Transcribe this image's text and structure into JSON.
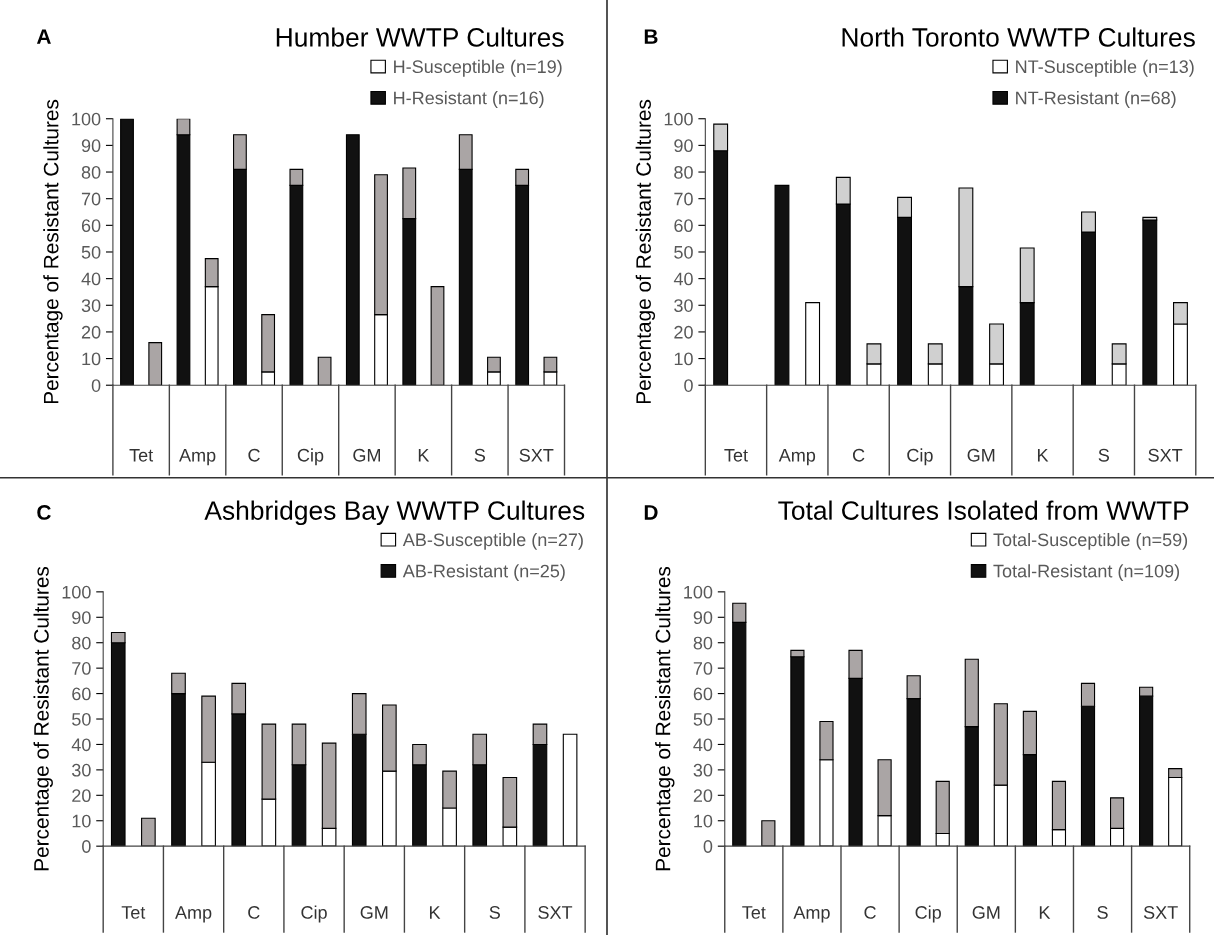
{
  "chart_data": [
    {
      "type": "bar",
      "title": "Humber WWTP Cultures",
      "ylabel": "Percentage of Resistant Cultures",
      "annotations": [
        "A"
      ],
      "stacked": true,
      "legend": "top right",
      "ylim": [
        0,
        100
      ],
      "yticks": [
        0,
        10,
        20,
        30,
        40,
        50,
        60,
        70,
        80,
        90,
        100
      ],
      "categories": [
        "Tet",
        null,
        "Amp",
        null,
        "C",
        null,
        "Cip",
        null,
        "GM",
        null,
        "K",
        null,
        "S",
        null,
        "SXT",
        null
      ],
      "series": [
        {
          "name": "H-Susceptible (n=19)",
          "color": "#ffffff",
          "values": [
            null,
            null,
            null,
            37,
            null,
            5,
            null,
            null,
            null,
            26.5,
            null,
            null,
            null,
            5,
            null,
            5
          ]
        },
        {
          "name": "H-Resistant (n=16)",
          "color": "#111111",
          "values": [
            100,
            null,
            94,
            null,
            81,
            null,
            75,
            null,
            94,
            null,
            62.5,
            null,
            81,
            null,
            75,
            null
          ]
        },
        {
          "color": "#aaa5a5",
          "values": [
            null,
            16,
            6,
            10.5,
            13,
            21.5,
            6,
            10.5,
            null,
            52.5,
            19,
            37,
            13,
            5.5,
            6,
            5.5
          ]
        }
      ]
    },
    {
      "type": "bar",
      "title": "North Toronto WWTP Cultures",
      "ylabel": "Percentage of Resistant Cultures",
      "annotations": [
        "B"
      ],
      "stacked": true,
      "legend": "top right",
      "ylim": [
        0,
        100
      ],
      "yticks": [
        0,
        10,
        20,
        30,
        40,
        50,
        60,
        70,
        80,
        90,
        100
      ],
      "categories": [
        "Tet",
        null,
        "Amp",
        null,
        "C",
        null,
        "Cip",
        null,
        "GM",
        null,
        "K",
        null,
        "S",
        null,
        "SXT",
        null
      ],
      "series": [
        {
          "name": "NT-Susceptible (n=13)",
          "color": "#ffffff",
          "values": [
            null,
            null,
            null,
            31,
            null,
            8,
            null,
            8,
            null,
            8,
            null,
            null,
            null,
            8,
            null,
            23
          ]
        },
        {
          "name": "NT-Resistant (n=68)",
          "color": "#111111",
          "values": [
            88,
            null,
            75,
            null,
            68,
            null,
            63,
            null,
            37,
            null,
            31,
            null,
            57.5,
            null,
            62,
            null
          ]
        },
        {
          "color": "#d0d0d0",
          "values": [
            10,
            null,
            null,
            null,
            10,
            7.5,
            7.5,
            7.5,
            37,
            15,
            20.5,
            null,
            7.5,
            7.5,
            1,
            8
          ]
        }
      ]
    },
    {
      "type": "bar",
      "title": "Ashbridges Bay WWTP Cultures",
      "ylabel": "Percentage of Resistant Cultures",
      "annotations": [
        "C"
      ],
      "stacked": true,
      "legend": "top right",
      "ylim": [
        0,
        100
      ],
      "yticks": [
        0,
        10,
        20,
        30,
        40,
        50,
        60,
        70,
        80,
        90,
        100
      ],
      "categories": [
        "Tet",
        null,
        "Amp",
        null,
        "C",
        null,
        "Cip",
        null,
        "GM",
        null,
        "K",
        null,
        "S",
        null,
        "SXT",
        null
      ],
      "series": [
        {
          "name": "AB-Susceptible (n=27)",
          "color": "#ffffff",
          "values": [
            null,
            null,
            null,
            33,
            null,
            18.5,
            null,
            7,
            null,
            29.5,
            null,
            15,
            null,
            7.5,
            null,
            44
          ]
        },
        {
          "name": "AB-Resistant (n=25)",
          "color": "#111111",
          "values": [
            80,
            null,
            60,
            null,
            52,
            null,
            32,
            null,
            44,
            null,
            32,
            null,
            32,
            null,
            40,
            null
          ]
        },
        {
          "color": "#aaa5a5",
          "values": [
            4,
            11,
            8,
            26,
            12,
            29.5,
            16,
            33.5,
            16,
            26,
            8,
            14.5,
            12,
            19.5,
            8,
            null
          ]
        }
      ]
    },
    {
      "type": "bar",
      "title": "Total Cultures Isolated from WWTP",
      "ylabel": "Percentage of Resistant Cultures",
      "annotations": [
        "D"
      ],
      "stacked": true,
      "legend": "top right",
      "ylim": [
        0,
        100
      ],
      "yticks": [
        0,
        10,
        20,
        30,
        40,
        50,
        60,
        70,
        80,
        90,
        100
      ],
      "categories": [
        "Tet",
        null,
        "Amp",
        null,
        "C",
        null,
        "Cip",
        null,
        "GM",
        null,
        "K",
        null,
        "S",
        null,
        "SXT",
        null
      ],
      "series": [
        {
          "name": "Total-Susceptible (n=59)",
          "color": "#ffffff",
          "values": [
            null,
            null,
            null,
            34,
            null,
            12,
            null,
            5,
            null,
            24,
            null,
            6.5,
            null,
            7,
            null,
            27
          ]
        },
        {
          "name": "Total-Resistant (n=109)",
          "color": "#111111",
          "values": [
            88,
            null,
            74.5,
            null,
            66,
            null,
            58,
            null,
            47,
            null,
            36,
            null,
            55,
            null,
            59,
            null
          ]
        },
        {
          "color": "#aaa5a5",
          "values": [
            7.5,
            10,
            2.5,
            15,
            11,
            22,
            9,
            20.5,
            26.5,
            32,
            17,
            19,
            9,
            12,
            3.5,
            3.5
          ]
        }
      ]
    }
  ]
}
